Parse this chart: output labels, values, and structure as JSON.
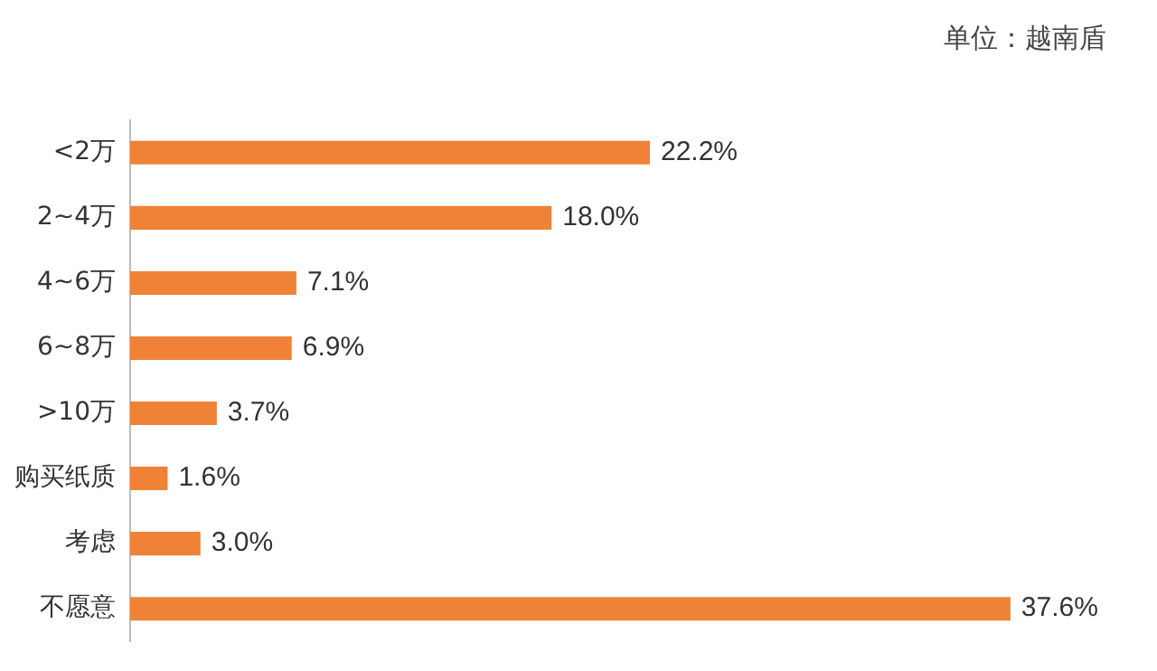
{
  "chart_data": {
    "type": "bar",
    "orientation": "horizontal",
    "annotations": [
      "单位：越南盾"
    ],
    "categories": [
      "<2万",
      "2~4万",
      "4~6万",
      "6~8万",
      ">10万",
      "购买纸质",
      "考虑",
      "不愿意"
    ],
    "values": [
      22.2,
      18.0,
      7.1,
      6.9,
      3.7,
      1.6,
      3.0,
      37.6
    ],
    "value_labels": [
      "22.2%",
      "18.0%",
      "7.1%",
      "6.9%",
      "3.7%",
      "1.6%",
      "3.0%",
      "37.6%"
    ],
    "color": "#ef8236"
  }
}
